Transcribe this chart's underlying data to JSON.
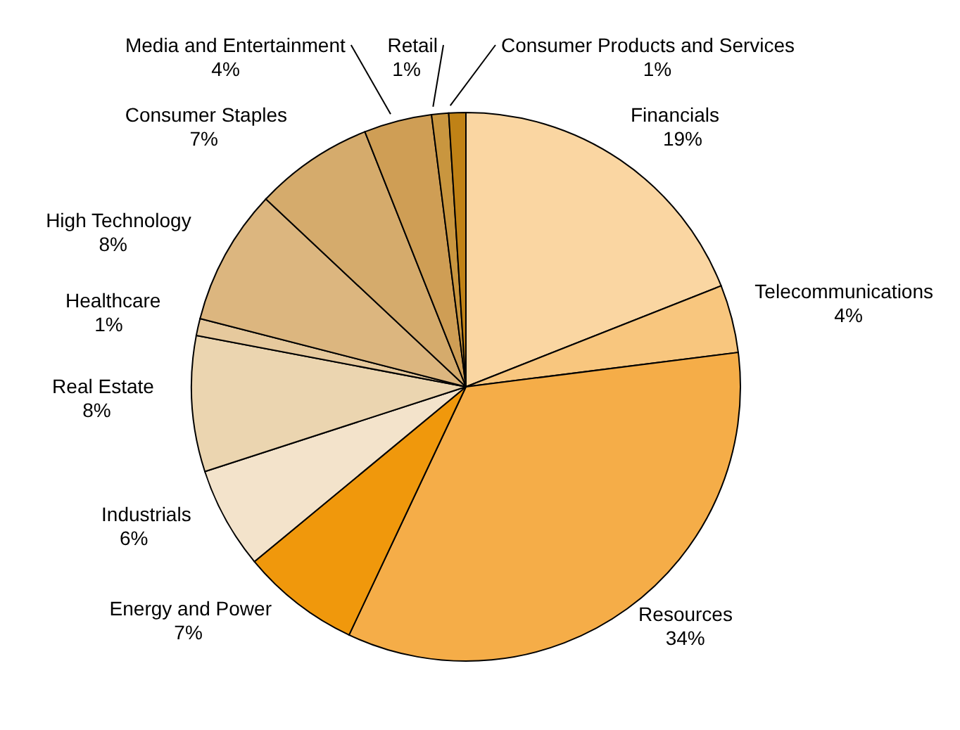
{
  "chart_data": {
    "type": "pie",
    "categories": [
      "Financials",
      "Telecommunications",
      "Resources",
      "Energy and Power",
      "Industrials",
      "Real Estate",
      "Healthcare",
      "High Technology",
      "Consumer Staples",
      "Media and Entertainment",
      "Retail",
      "Consumer Products and Services"
    ],
    "values": [
      19,
      4,
      34,
      7,
      6,
      8,
      1,
      8,
      7,
      4,
      1,
      1
    ],
    "value_labels": [
      "19%",
      "4%",
      "34%",
      "7%",
      "6%",
      "8%",
      "1%",
      "8%",
      "7%",
      "4%",
      "1%",
      "1%"
    ],
    "colors": [
      "#fad6a2",
      "#f8c67e",
      "#f5ad48",
      "#f0980c",
      "#f3e3cb",
      "#ebd5b0",
      "#e6c99d",
      "#dcb67f",
      "#d5ab6c",
      "#cf9e55",
      "#c9963f",
      "#c08216"
    ]
  }
}
